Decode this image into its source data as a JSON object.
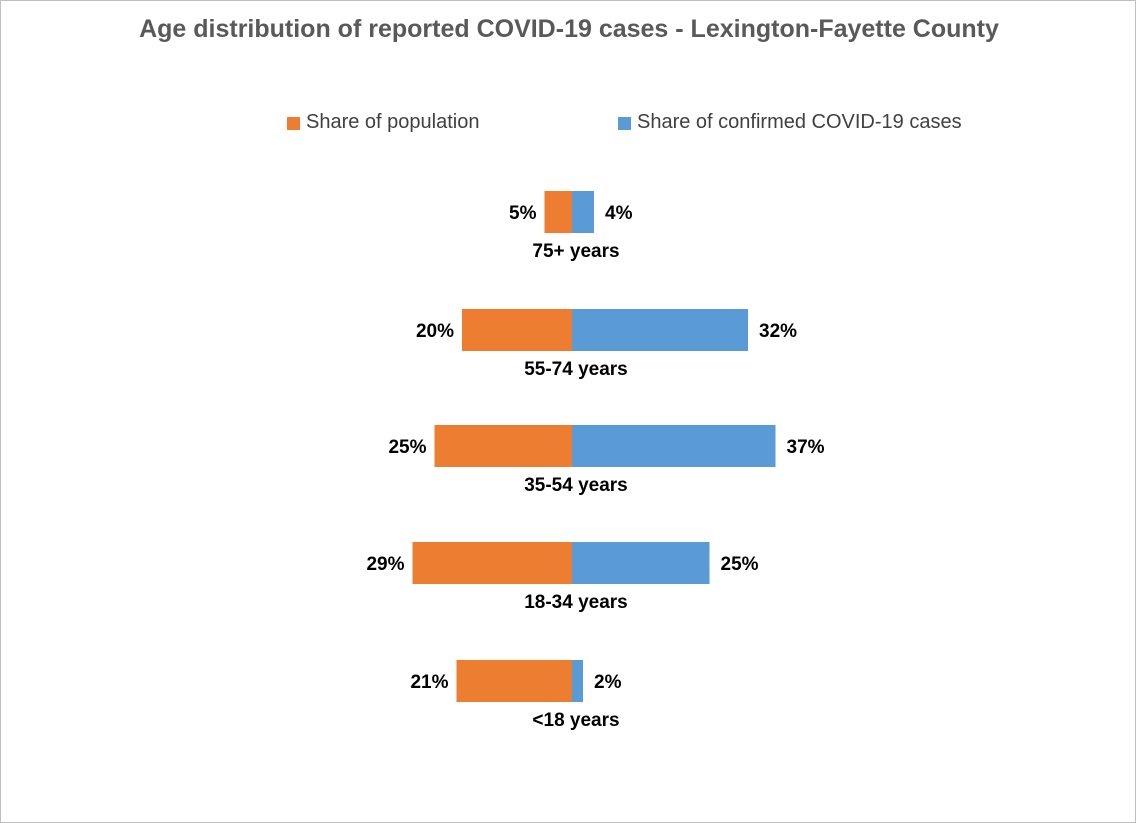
{
  "colors": {
    "population": "#ed7d31",
    "cases": "#5b9bd5",
    "title": "#595959",
    "label": "#000000",
    "legend_text": "#404040",
    "border": "#bfbfbf"
  },
  "chart_data": {
    "type": "bar",
    "orientation": "horizontal-diverging",
    "title": "Age distribution of reported COVID-19 cases -  Lexington-Fayette County",
    "categories": [
      "75+ years",
      "55-74 years",
      "35-54 years",
      "18-34 years",
      "<18 years"
    ],
    "series": [
      {
        "name": "Share of population",
        "values": [
          5,
          20,
          25,
          29,
          21
        ],
        "labels": [
          "5%",
          "20%",
          "25%",
          "29%",
          "21%"
        ],
        "direction": "left"
      },
      {
        "name": "Share of confirmed COVID-19 cases",
        "values": [
          4,
          32,
          37,
          25,
          2
        ],
        "labels": [
          "4%",
          "32%",
          "37%",
          "25%",
          "2%"
        ],
        "direction": "right"
      }
    ],
    "unit": "%",
    "legend_position": "top",
    "grid": false,
    "xlabel": "",
    "ylabel": ""
  }
}
